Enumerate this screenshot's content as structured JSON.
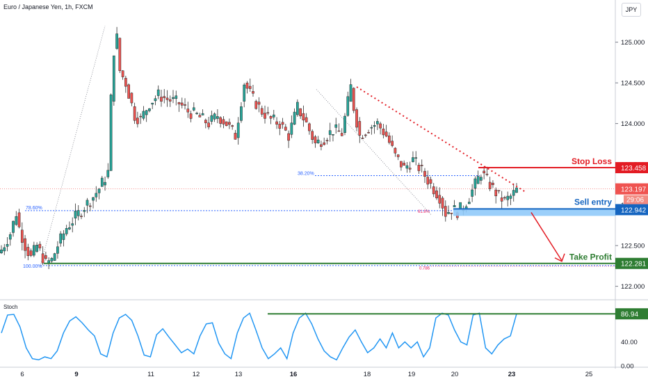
{
  "title": "Euro / Japanese Yen, 1h, FXCM",
  "currency_button": "JPY",
  "colors": {
    "up": "#26a69a",
    "down": "#ef5350",
    "candle": "#2b2b2b",
    "stop": "#e31b23",
    "entry": "#1565c0",
    "entry_zone": "#90caf9",
    "take_profit": "#2e7d32",
    "fib": "#2962ff",
    "fib2": "#e91e63",
    "stoch": "#2196f3",
    "trend": "#e31b23"
  },
  "chart_data": [
    {
      "type": "candlestick",
      "series_name": "Euro / Japanese Yen, 1h, FXCM",
      "x_tick_labels": [
        "6",
        "9",
        "11",
        "12",
        "13",
        "16",
        "18",
        "19",
        "20",
        "23",
        "25"
      ],
      "y_ticks": [
        122.0,
        122.5,
        123.0,
        123.5,
        124.0,
        124.5,
        125.0
      ],
      "y_tick_labels": [
        "122.000",
        "122.500",
        "123.000",
        "123.500",
        "124.000",
        "124.500",
        "125.000"
      ],
      "ylim": [
        121.86,
        125.45
      ],
      "close_path": [
        [
          0,
          122.45
        ],
        [
          3,
          122.65
        ],
        [
          5,
          122.9
        ],
        [
          6,
          122.72
        ],
        [
          8,
          122.5
        ],
        [
          10,
          122.35
        ],
        [
          12,
          122.5
        ],
        [
          15,
          122.28
        ],
        [
          17,
          122.32
        ],
        [
          19,
          122.5
        ],
        [
          22,
          122.72
        ],
        [
          25,
          122.85
        ],
        [
          28,
          122.98
        ],
        [
          31,
          123.1
        ],
        [
          33,
          123.2
        ],
        [
          36,
          123.4
        ],
        [
          37,
          124.3
        ],
        [
          38,
          124.9
        ],
        [
          39,
          125.05
        ],
        [
          40,
          124.65
        ],
        [
          42,
          124.5
        ],
        [
          45,
          124.1
        ],
        [
          47,
          124.05
        ],
        [
          50,
          124.25
        ],
        [
          53,
          124.35
        ],
        [
          56,
          124.3
        ],
        [
          60,
          124.25
        ],
        [
          63,
          124.15
        ],
        [
          66,
          124.1
        ],
        [
          70,
          124.0
        ],
        [
          73,
          124.1
        ],
        [
          76,
          124.0
        ],
        [
          79,
          123.85
        ],
        [
          82,
          124.5
        ],
        [
          85,
          124.3
        ],
        [
          88,
          124.15
        ],
        [
          91,
          124.05
        ],
        [
          94,
          124.0
        ],
        [
          97,
          123.85
        ],
        [
          100,
          124.2
        ],
        [
          103,
          124.0
        ],
        [
          106,
          123.75
        ],
        [
          109,
          123.82
        ],
        [
          112,
          123.92
        ],
        [
          115,
          123.88
        ],
        [
          118,
          124.45
        ],
        [
          119,
          124.2
        ],
        [
          121,
          123.85
        ],
        [
          124,
          123.95
        ],
        [
          127,
          124.0
        ],
        [
          130,
          123.85
        ],
        [
          133,
          123.6
        ],
        [
          136,
          123.45
        ],
        [
          139,
          123.55
        ],
        [
          142,
          123.42
        ],
        [
          145,
          123.25
        ],
        [
          148,
          123.1
        ],
        [
          150,
          122.9
        ],
        [
          152,
          122.95
        ],
        [
          154,
          122.92
        ],
        [
          156,
          122.98
        ],
        [
          158,
          123.1
        ],
        [
          160,
          123.25
        ],
        [
          162,
          123.4
        ],
        [
          164,
          123.3
        ],
        [
          166,
          123.2
        ],
        [
          168,
          123.1
        ],
        [
          170,
          123.05
        ],
        [
          172,
          123.1
        ],
        [
          174,
          123.18
        ]
      ],
      "fibonacci": {
        "left_levels": [
          {
            "label": "78.60%",
            "value": 122.93
          },
          {
            "label": "100.00%",
            "value": 122.28
          }
        ],
        "right_levels": [
          {
            "label": "38.20%",
            "value": 123.36
          },
          {
            "label": "61.8%",
            "value": 122.93
          },
          {
            "label": "0.786",
            "value": 122.23
          }
        ]
      },
      "trendline": {
        "from": [
          120,
          124.45
        ],
        "to": [
          180,
          123.17
        ]
      },
      "annotations": [
        {
          "text": "Stop Loss",
          "value": 123.458,
          "price_label": "123.458"
        },
        {
          "text": "Sell entry",
          "value": 122.942,
          "price_label": "122.942"
        },
        {
          "text": "Take Profit",
          "value": 122.281,
          "price_label": "122.281"
        }
      ],
      "last_price": {
        "value": 123.197,
        "label": "123.197",
        "countdown": "29:06"
      }
    },
    {
      "type": "line",
      "title": "Stoch",
      "y_tick_labels": [
        "0.00",
        "40.00",
        "86.94"
      ],
      "ylim": [
        0,
        100
      ],
      "current_value": 86.94,
      "current_label": "86.94",
      "values": [
        55,
        85,
        86,
        65,
        30,
        12,
        10,
        15,
        12,
        25,
        55,
        75,
        82,
        72,
        60,
        50,
        20,
        15,
        55,
        80,
        86,
        76,
        50,
        18,
        15,
        52,
        62,
        48,
        35,
        22,
        28,
        20,
        50,
        70,
        72,
        38,
        20,
        12,
        55,
        80,
        88,
        60,
        30,
        12,
        20,
        30,
        12,
        55,
        80,
        88,
        70,
        45,
        25,
        15,
        10,
        30,
        48,
        60,
        40,
        22,
        30,
        45,
        30,
        55,
        30,
        40,
        30,
        40,
        15,
        30,
        80,
        88,
        85,
        60,
        40,
        35,
        85,
        88,
        30,
        20,
        35,
        45,
        50,
        87
      ]
    }
  ]
}
